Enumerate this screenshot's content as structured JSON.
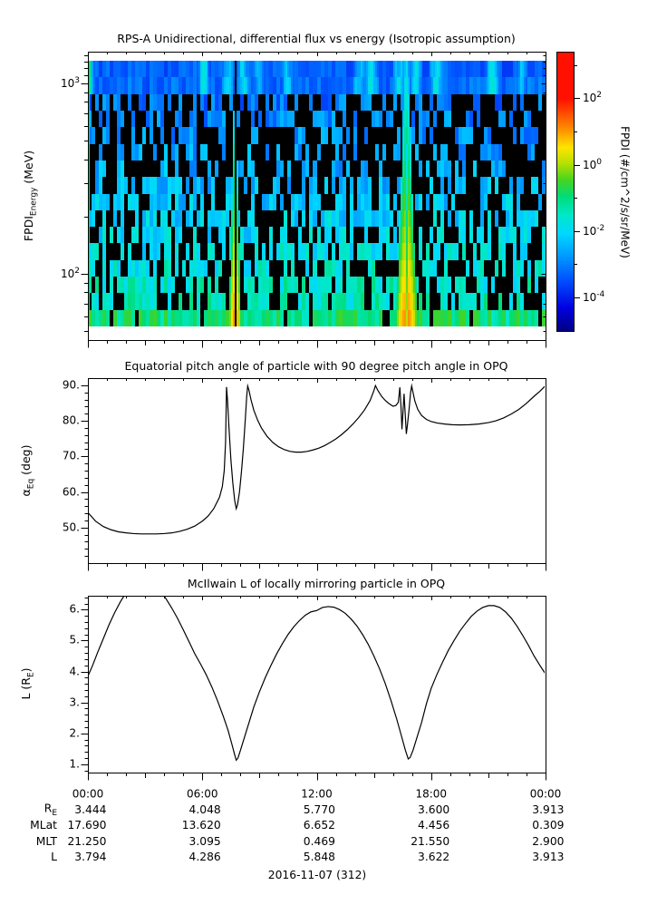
{
  "figure": {
    "background": "#ffffff",
    "foreground": "#000000"
  },
  "panels": {
    "spectrogram": {
      "title": "RPS-A Unidirectional, differential flux vs energy (Isotropic assumption)",
      "ylabel": {
        "main": "FPDI",
        "sub": "Energy",
        "rest": " (MeV)"
      },
      "yticks": [
        {
          "base": "10",
          "exp": "3",
          "logv": 3
        },
        {
          "base": "10",
          "exp": "2",
          "logv": 2
        }
      ]
    },
    "colorbar": {
      "label": "FPDI (#/cm^2/s/sr/MeV)",
      "ticks": [
        {
          "base": "10",
          "exp": "2",
          "logv": 2
        },
        {
          "base": "10",
          "exp": "0",
          "logv": 0
        },
        {
          "base": "10",
          "exp": "-2",
          "logv": -2
        },
        {
          "base": "10",
          "exp": "-4",
          "logv": -4
        }
      ],
      "minor_logs": [
        3,
        1,
        -1,
        -3
      ]
    },
    "pitch": {
      "title": "Equatorial pitch angle of particle with 90 degree pitch angle in OPQ",
      "ylabel": {
        "main": "α",
        "sub": "Eq",
        "rest": " (deg)"
      },
      "yticks": [
        {
          "label": "90.",
          "v": 90
        },
        {
          "label": "80.",
          "v": 80
        },
        {
          "label": "70.",
          "v": 70
        },
        {
          "label": "60.",
          "v": 60
        },
        {
          "label": "50.",
          "v": 50
        }
      ]
    },
    "mcilwain": {
      "title": "McIlwain L of locally mirroring particle in OPQ",
      "ylabel": {
        "main": "L (R",
        "sub": "E",
        "rest": ")"
      },
      "yticks": [
        {
          "label": "6.",
          "v": 6
        },
        {
          "label": "5.",
          "v": 5
        },
        {
          "label": "4.",
          "v": 4
        },
        {
          "label": "3.",
          "v": 3
        },
        {
          "label": "2.",
          "v": 2
        },
        {
          "label": "1.",
          "v": 1
        }
      ]
    }
  },
  "xaxis": {
    "ticks": [
      {
        "label": "00:00",
        "t": 0
      },
      {
        "label": "06:00",
        "t": 6
      },
      {
        "label": "12:00",
        "t": 12
      },
      {
        "label": "18:00",
        "t": 18
      },
      {
        "label": "00:00",
        "t": 24
      }
    ],
    "minor_step_hours": 1
  },
  "table": {
    "rows": [
      {
        "label": "R",
        "label_sub": "E",
        "values": [
          "3.444",
          "4.048",
          "5.770",
          "3.600",
          "3.913"
        ]
      },
      {
        "label": "MLat",
        "label_sub": "",
        "values": [
          "17.690",
          "13.620",
          "6.652",
          "4.456",
          "0.309"
        ]
      },
      {
        "label": "MLT",
        "label_sub": "",
        "values": [
          "21.250",
          "3.095",
          "0.469",
          "21.550",
          "2.900"
        ]
      },
      {
        "label": "L",
        "label_sub": "",
        "values": [
          "3.794",
          "4.286",
          "5.848",
          "3.622",
          "3.913"
        ]
      }
    ]
  },
  "footer": {
    "date_label": "2016-11-07 (312)"
  },
  "chart_data": [
    {
      "type": "heatmap",
      "title": "RPS-A Unidirectional, differential flux vs energy (Isotropic assumption)",
      "ylabel": "FPDI_Energy (MeV)",
      "x_range_hours": [
        0,
        24
      ],
      "y_range_mev": [
        55,
        1350
      ],
      "y_scale": "log",
      "n_channels": 16,
      "render_seed": 13,
      "colorbar": {
        "label": "FPDI (#/cm^2/s/sr/MeV)",
        "log10_range": [
          -5,
          3.4
        ],
        "ticks_log10": [
          2,
          0,
          -2,
          -4
        ]
      },
      "colormap_stops": [
        [
          0.0,
          "#000080"
        ],
        [
          0.1,
          "#0000e0"
        ],
        [
          0.22,
          "#0050ff"
        ],
        [
          0.32,
          "#0098ff"
        ],
        [
          0.42,
          "#00d8ff"
        ],
        [
          0.5,
          "#00e8c8"
        ],
        [
          0.58,
          "#00dc78"
        ],
        [
          0.65,
          "#46d420"
        ],
        [
          0.72,
          "#b4e000"
        ],
        [
          0.79,
          "#ffe400"
        ],
        [
          0.87,
          "#ff8c00"
        ],
        [
          1.0,
          "#ff1000"
        ]
      ],
      "background": {
        "log10flux_top": -3.35,
        "log10flux_bottom": -1.3,
        "noise": 0.55,
        "dropout_fraction": 0.45,
        "bottom_row_log10flux": -1.0
      },
      "perigee_plumes": [
        {
          "center_hour": 7.73,
          "peak_log10_top": -2.0,
          "peak_log10_bottom": 1.05,
          "sigma_top_h": 0.07,
          "sigma_bottom_h": 0.42,
          "k": 3.5,
          "black_core_halfwidth_h": 0.055
        },
        {
          "center_hour": 16.7,
          "peak_log10_top": -1.9,
          "peak_log10_bottom": 1.15,
          "sigma_top_h": 0.24,
          "sigma_bottom_h": 0.8,
          "k": 4.0,
          "core_split_depth": 1.15,
          "core_split_sigma_h": 0.05
        }
      ],
      "top_band_streaks": [
        [
          0.05,
          2.2
        ],
        [
          6.1,
          1.5
        ],
        [
          7.35,
          1.2
        ],
        [
          8.15,
          1.3
        ],
        [
          9.0,
          0.9
        ],
        [
          10.5,
          1.0
        ],
        [
          14.2,
          1.1
        ],
        [
          14.85,
          1.5
        ],
        [
          16.3,
          1.2
        ],
        [
          17.15,
          1.4
        ],
        [
          18.25,
          1.5
        ],
        [
          21.2,
          1.6
        ],
        [
          22.7,
          0.9
        ]
      ]
    },
    {
      "type": "line",
      "title": "Equatorial pitch angle of particle with 90 degree pitch angle in OPQ",
      "xlabel_ticks": [
        "00:00",
        "06:00",
        "12:00",
        "18:00",
        "00:00"
      ],
      "ylabel": "alpha_Eq (deg)",
      "ylim": [
        40,
        92
      ],
      "yticks": [
        50,
        60,
        70,
        80,
        90
      ],
      "points": [
        [
          0,
          54.2
        ],
        [
          0.4,
          51.8
        ],
        [
          0.8,
          50.3
        ],
        [
          1.2,
          49.4
        ],
        [
          1.6,
          48.8
        ],
        [
          2,
          48.5
        ],
        [
          2.4,
          48.3
        ],
        [
          2.8,
          48.2
        ],
        [
          3.2,
          48.2
        ],
        [
          3.6,
          48.2
        ],
        [
          4,
          48.3
        ],
        [
          4.4,
          48.5
        ],
        [
          4.8,
          48.9
        ],
        [
          5.2,
          49.5
        ],
        [
          5.6,
          50.4
        ],
        [
          6,
          51.8
        ],
        [
          6.3,
          53.2
        ],
        [
          6.6,
          55.3
        ],
        [
          6.9,
          58.5
        ],
        [
          7.05,
          61.5
        ],
        [
          7.15,
          66
        ],
        [
          7.22,
          74
        ],
        [
          7.27,
          89.5
        ],
        [
          7.32,
          86
        ],
        [
          7.4,
          78
        ],
        [
          7.5,
          69
        ],
        [
          7.6,
          62.5
        ],
        [
          7.7,
          57.5
        ],
        [
          7.78,
          55.3
        ],
        [
          7.85,
          56.5
        ],
        [
          7.95,
          60
        ],
        [
          8.05,
          65.5
        ],
        [
          8.15,
          72
        ],
        [
          8.25,
          80
        ],
        [
          8.33,
          87
        ],
        [
          8.38,
          89.8
        ],
        [
          8.45,
          88.5
        ],
        [
          8.55,
          86
        ],
        [
          8.7,
          83
        ],
        [
          8.9,
          80.2
        ],
        [
          9.1,
          78
        ],
        [
          9.4,
          75.6
        ],
        [
          9.7,
          73.9
        ],
        [
          10,
          72.7
        ],
        [
          10.3,
          71.9
        ],
        [
          10.6,
          71.4
        ],
        [
          10.9,
          71.2
        ],
        [
          11.2,
          71.2
        ],
        [
          11.5,
          71.4
        ],
        [
          11.8,
          71.8
        ],
        [
          12.1,
          72.3
        ],
        [
          12.4,
          73
        ],
        [
          12.7,
          73.9
        ],
        [
          13,
          74.9
        ],
        [
          13.3,
          76.1
        ],
        [
          13.6,
          77.5
        ],
        [
          13.9,
          79.1
        ],
        [
          14.2,
          80.9
        ],
        [
          14.5,
          83
        ],
        [
          14.8,
          85.7
        ],
        [
          15,
          88.5
        ],
        [
          15.08,
          89.9
        ],
        [
          15.2,
          88.6
        ],
        [
          15.4,
          86.9
        ],
        [
          15.6,
          85.7
        ],
        [
          15.8,
          84.8
        ],
        [
          16,
          84.1
        ],
        [
          16.15,
          84.3
        ],
        [
          16.28,
          85.2
        ],
        [
          16.36,
          89.4
        ],
        [
          16.42,
          84
        ],
        [
          16.47,
          77.6
        ],
        [
          16.53,
          83
        ],
        [
          16.58,
          87.6
        ],
        [
          16.64,
          82
        ],
        [
          16.7,
          76.3
        ],
        [
          16.76,
          79
        ],
        [
          16.84,
          83
        ],
        [
          16.92,
          87.8
        ],
        [
          16.98,
          89.8
        ],
        [
          17.05,
          88
        ],
        [
          17.15,
          85.5
        ],
        [
          17.3,
          83.2
        ],
        [
          17.5,
          81.5
        ],
        [
          17.75,
          80.4
        ],
        [
          18,
          79.8
        ],
        [
          18.3,
          79.4
        ],
        [
          18.7,
          79.1
        ],
        [
          19.1,
          78.9
        ],
        [
          19.5,
          78.85
        ],
        [
          20,
          78.9
        ],
        [
          20.5,
          79.1
        ],
        [
          21,
          79.5
        ],
        [
          21.4,
          80
        ],
        [
          21.8,
          80.8
        ],
        [
          22.2,
          81.9
        ],
        [
          22.6,
          83.2
        ],
        [
          23,
          84.9
        ],
        [
          23.4,
          86.9
        ],
        [
          23.7,
          88.3
        ],
        [
          24,
          89.9
        ]
      ]
    },
    {
      "type": "line",
      "title": "McIlwain L of locally mirroring particle in OPQ",
      "xlabel_ticks": [
        "00:00",
        "06:00",
        "12:00",
        "18:00",
        "00:00"
      ],
      "ylabel": "L (R_E)",
      "ylim": [
        0.73,
        6.45
      ],
      "yticks": [
        1,
        2,
        3,
        4,
        5,
        6
      ],
      "points": [
        [
          0,
          3.85
        ],
        [
          0.25,
          4.2
        ],
        [
          0.5,
          4.6
        ],
        [
          0.8,
          5.05
        ],
        [
          1.1,
          5.5
        ],
        [
          1.4,
          5.9
        ],
        [
          1.7,
          6.25
        ],
        [
          2,
          6.55
        ],
        [
          2.3,
          6.75
        ],
        [
          2.6,
          6.88
        ],
        [
          2.9,
          6.93
        ],
        [
          3.2,
          6.9
        ],
        [
          3.5,
          6.8
        ],
        [
          3.8,
          6.6
        ],
        [
          4.1,
          6.35
        ],
        [
          4.4,
          6.05
        ],
        [
          4.7,
          5.72
        ],
        [
          5,
          5.35
        ],
        [
          5.3,
          4.97
        ],
        [
          5.6,
          4.58
        ],
        [
          5.9,
          4.25
        ],
        [
          6.2,
          3.9
        ],
        [
          6.5,
          3.5
        ],
        [
          6.8,
          3.05
        ],
        [
          7.1,
          2.55
        ],
        [
          7.35,
          2.1
        ],
        [
          7.55,
          1.65
        ],
        [
          7.7,
          1.3
        ],
        [
          7.78,
          1.13
        ],
        [
          7.87,
          1.2
        ],
        [
          8,
          1.45
        ],
        [
          8.2,
          1.85
        ],
        [
          8.45,
          2.35
        ],
        [
          8.7,
          2.85
        ],
        [
          9,
          3.35
        ],
        [
          9.3,
          3.8
        ],
        [
          9.6,
          4.2
        ],
        [
          9.9,
          4.57
        ],
        [
          10.2,
          4.9
        ],
        [
          10.5,
          5.2
        ],
        [
          10.8,
          5.45
        ],
        [
          11.1,
          5.65
        ],
        [
          11.4,
          5.82
        ],
        [
          11.7,
          5.93
        ],
        [
          12,
          5.97
        ],
        [
          12.3,
          6.07
        ],
        [
          12.6,
          6.1
        ],
        [
          12.9,
          6.08
        ],
        [
          13.2,
          6.0
        ],
        [
          13.5,
          5.88
        ],
        [
          13.8,
          5.7
        ],
        [
          14.1,
          5.48
        ],
        [
          14.4,
          5.2
        ],
        [
          14.7,
          4.88
        ],
        [
          15,
          4.5
        ],
        [
          15.3,
          4.08
        ],
        [
          15.6,
          3.6
        ],
        [
          15.9,
          3.05
        ],
        [
          16.2,
          2.45
        ],
        [
          16.45,
          1.9
        ],
        [
          16.65,
          1.45
        ],
        [
          16.8,
          1.17
        ],
        [
          16.9,
          1.22
        ],
        [
          17.05,
          1.45
        ],
        [
          17.25,
          1.85
        ],
        [
          17.5,
          2.35
        ],
        [
          17.75,
          2.95
        ],
        [
          18,
          3.45
        ],
        [
          18.3,
          3.9
        ],
        [
          18.6,
          4.3
        ],
        [
          18.9,
          4.68
        ],
        [
          19.2,
          5.0
        ],
        [
          19.5,
          5.3
        ],
        [
          19.8,
          5.55
        ],
        [
          20.1,
          5.78
        ],
        [
          20.4,
          5.95
        ],
        [
          20.7,
          6.07
        ],
        [
          21,
          6.13
        ],
        [
          21.3,
          6.13
        ],
        [
          21.6,
          6.07
        ],
        [
          21.9,
          5.93
        ],
        [
          22.2,
          5.73
        ],
        [
          22.5,
          5.47
        ],
        [
          22.8,
          5.17
        ],
        [
          23.1,
          4.85
        ],
        [
          23.4,
          4.5
        ],
        [
          23.7,
          4.2
        ],
        [
          24,
          3.92
        ]
      ]
    }
  ]
}
